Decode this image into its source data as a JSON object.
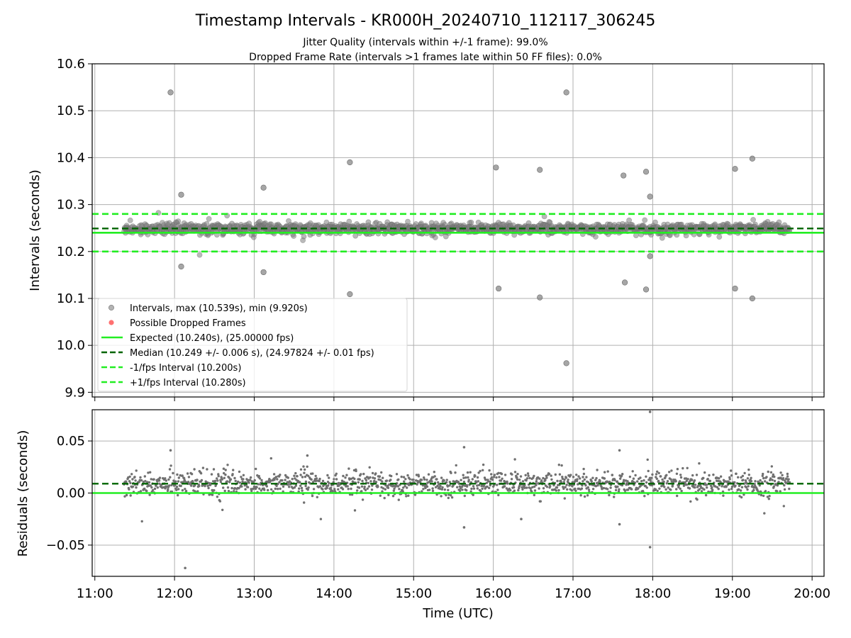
{
  "chart_data": [
    {
      "type": "scatter",
      "title": "Timestamp Intervals - KR000H_20240710_112117_306245",
      "subtitle_lines": [
        "Jitter Quality (intervals within +/-1 frame): 99.0%",
        "Dropped Frame Rate (intervals >1 frames late within 50 FF files): 0.0%"
      ],
      "xlabel": "",
      "ylabel": "Intervals (seconds)",
      "xlim": [
        "10:58",
        "20:09"
      ],
      "ylim": [
        9.89,
        10.6
      ],
      "yticks": [
        "9.9",
        "10.0",
        "10.1",
        "10.2",
        "10.3",
        "10.4",
        "10.5",
        "10.6"
      ],
      "grid": true,
      "legend_position": "lower-left",
      "legend": [
        "Intervals, max (10.539s), min (9.920s)",
        "Possible Dropped Frames",
        "Expected (10.240s), (25.00000 fps)",
        "Median (10.249 +/- 0.006 s), (24.97824 +/- 0.01 fps)",
        "-1/fps Interval (10.200s)",
        "+1/fps Interval (10.280s)"
      ],
      "reference_lines": {
        "expected": 10.24,
        "median": 10.249,
        "minus_one_fps": 10.2,
        "plus_one_fps": 10.28
      },
      "time_range": [
        "11:22",
        "19:43"
      ],
      "bulk_band": [
        10.235,
        10.262
      ],
      "outliers": [
        {
          "x": "11:57",
          "y": 10.539
        },
        {
          "x": "16:55",
          "y": 10.539
        },
        {
          "x": "12:05",
          "y": 10.321
        },
        {
          "x": "13:07",
          "y": 10.336
        },
        {
          "x": "14:12",
          "y": 10.39
        },
        {
          "x": "16:02",
          "y": 10.379
        },
        {
          "x": "16:35",
          "y": 10.374
        },
        {
          "x": "17:38",
          "y": 10.362
        },
        {
          "x": "17:55",
          "y": 10.37
        },
        {
          "x": "17:58",
          "y": 10.317
        },
        {
          "x": "19:02",
          "y": 10.376
        },
        {
          "x": "19:15",
          "y": 10.398
        },
        {
          "x": "12:05",
          "y": 10.168
        },
        {
          "x": "13:07",
          "y": 10.156
        },
        {
          "x": "14:12",
          "y": 10.109
        },
        {
          "x": "16:04",
          "y": 10.121
        },
        {
          "x": "16:35",
          "y": 10.102
        },
        {
          "x": "17:39",
          "y": 10.134
        },
        {
          "x": "17:55",
          "y": 10.119
        },
        {
          "x": "17:58",
          "y": 10.19
        },
        {
          "x": "19:02",
          "y": 10.121
        },
        {
          "x": "19:15",
          "y": 10.1
        },
        {
          "x": "16:55",
          "y": 9.962
        }
      ],
      "colors": {
        "points": "#808080",
        "dropped": "#ff4040",
        "expected": "#22ee22",
        "median": "#006400",
        "interval": "#22ee22"
      }
    },
    {
      "type": "scatter",
      "title": "",
      "xlabel": "Time (UTC)",
      "ylabel": "Residuals (seconds)",
      "xlim": [
        "10:58",
        "20:09"
      ],
      "ylim": [
        -0.08,
        0.08
      ],
      "yticks": [
        "−0.05",
        "0.00",
        "0.05"
      ],
      "xticks": [
        "11:00",
        "12:00",
        "13:00",
        "14:00",
        "15:00",
        "16:00",
        "17:00",
        "18:00",
        "19:00",
        "20:00"
      ],
      "grid": true,
      "reference_lines": {
        "zero": 0.0,
        "median_offset": 0.009
      },
      "time_range": [
        "11:22",
        "19:43"
      ],
      "bulk_band": [
        -0.01,
        0.03
      ],
      "outliers": [
        {
          "x": "11:57",
          "y": 0.041
        },
        {
          "x": "12:08",
          "y": -0.072
        },
        {
          "x": "15:38",
          "y": 0.044
        },
        {
          "x": "15:38",
          "y": -0.033
        },
        {
          "x": "17:35",
          "y": 0.041
        },
        {
          "x": "17:35",
          "y": -0.03
        },
        {
          "x": "17:58",
          "y": 0.078
        },
        {
          "x": "17:58",
          "y": -0.052
        },
        {
          "x": "13:40",
          "y": 0.036
        },
        {
          "x": "16:21",
          "y": -0.025
        }
      ],
      "colors": {
        "points": "#707070",
        "zero": "#22ee22",
        "median": "#006400"
      }
    }
  ]
}
